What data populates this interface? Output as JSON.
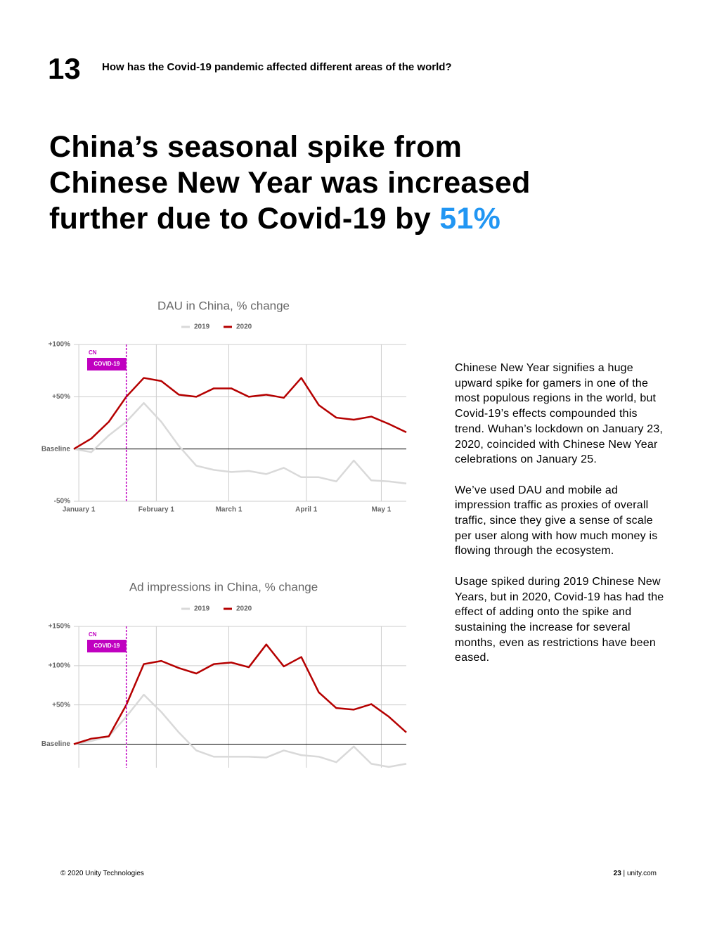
{
  "header": {
    "number": "13",
    "question": "How has the Covid-19 pandemic affected different areas of the world?"
  },
  "headline": {
    "lines": [
      "China’s seasonal spike from",
      "Chinese New Year was increased",
      "further due to Covid-19 by"
    ],
    "highlight": "51%"
  },
  "chart_data": [
    {
      "type": "line",
      "title": "DAU in China, % change",
      "x": [
        -2,
        5,
        12,
        19,
        26,
        33,
        40,
        47,
        54,
        61,
        68,
        75,
        82,
        89,
        96,
        103,
        110,
        117,
        124,
        131
      ],
      "series": [
        {
          "name": "2019",
          "color": "#d9d9d9",
          "values": [
            0,
            -3,
            13,
            26,
            44,
            26,
            3,
            -16,
            -20,
            -22,
            -21,
            -24,
            -18,
            -27,
            -27,
            -31,
            -11,
            -30,
            -31,
            -33
          ]
        },
        {
          "name": "2020",
          "color": "#b50000",
          "values": [
            0,
            10,
            26,
            50,
            68,
            65,
            52,
            50,
            58,
            58,
            50,
            52,
            49,
            68,
            42,
            30,
            28,
            31,
            24,
            16
          ]
        }
      ],
      "xlim": [
        -2,
        131
      ],
      "xticks": [
        {
          "value": 0,
          "label": "January 1"
        },
        {
          "value": 31,
          "label": "February 1"
        },
        {
          "value": 60,
          "label": "March 1"
        },
        {
          "value": 91,
          "label": "April 1"
        },
        {
          "value": 121,
          "label": "May 1"
        }
      ],
      "xtick_labels": true,
      "ylim": [
        -50,
        100
      ],
      "yticks": [
        {
          "value": -50,
          "label": "-50%"
        },
        {
          "value": 0,
          "label": "Baseline"
        },
        {
          "value": 50,
          "label": "+50%"
        },
        {
          "value": 100,
          "label": "+100%"
        }
      ],
      "grid": true,
      "annotation": {
        "x": 19,
        "label": "CN",
        "tag": "COVID-19",
        "color": "#c000c0"
      }
    },
    {
      "type": "line",
      "title": "Ad impressions in China, % change",
      "x": [
        -2,
        5,
        12,
        19,
        26,
        33,
        40,
        47,
        54,
        61,
        68,
        75,
        82,
        89,
        96,
        103,
        110,
        117,
        124,
        131
      ],
      "series": [
        {
          "name": "2019",
          "color": "#d9d9d9",
          "values": [
            0,
            4,
            10,
            35,
            63,
            41,
            15,
            -8,
            -16,
            -16,
            -16,
            -17,
            -8,
            -14,
            -16,
            -23,
            -3,
            -25,
            -29,
            -25
          ]
        },
        {
          "name": "2020",
          "color": "#b50000",
          "values": [
            0,
            7,
            10,
            50,
            102,
            106,
            97,
            90,
            102,
            104,
            98,
            127,
            99,
            111,
            66,
            46,
            44,
            51,
            35,
            15
          ]
        }
      ],
      "xlim": [
        -2,
        131
      ],
      "xticks": [
        0,
        31,
        60,
        91,
        121
      ],
      "xtick_labels": false,
      "ylim": [
        -30,
        150
      ],
      "yticks": [
        {
          "value": 0,
          "label": "Baseline"
        },
        {
          "value": 50,
          "label": "+50%"
        },
        {
          "value": 100,
          "label": "+100%"
        },
        {
          "value": 150,
          "label": "+150%"
        }
      ],
      "grid": true,
      "annotation": {
        "x": 19,
        "label": "CN",
        "tag": "COVID-19",
        "color": "#c000c0"
      }
    }
  ],
  "body": {
    "paragraphs": [
      "Chinese New Year signifies a huge upward spike for gamers in one of the most populous regions in the world, but Covid-19’s effects compounded this trend. Wuhan’s lockdown on January 23, 2020, coincided with Chinese New Year celebrations on January 25.",
      "We’ve used DAU and mobile ad impression traffic as proxies of overall traffic, since they give a sense of scale per user along with how much money is flowing through the ecosystem.",
      "Usage spiked during 2019 Chinese New Years, but in 2020, Covid-19 has had the effect of adding onto the spike and sustaining the increase for several months, even as restrictions have been eased."
    ]
  },
  "footer": {
    "copyright": "© 2020 Unity Technologies",
    "page": "23",
    "site": "unity.com"
  }
}
